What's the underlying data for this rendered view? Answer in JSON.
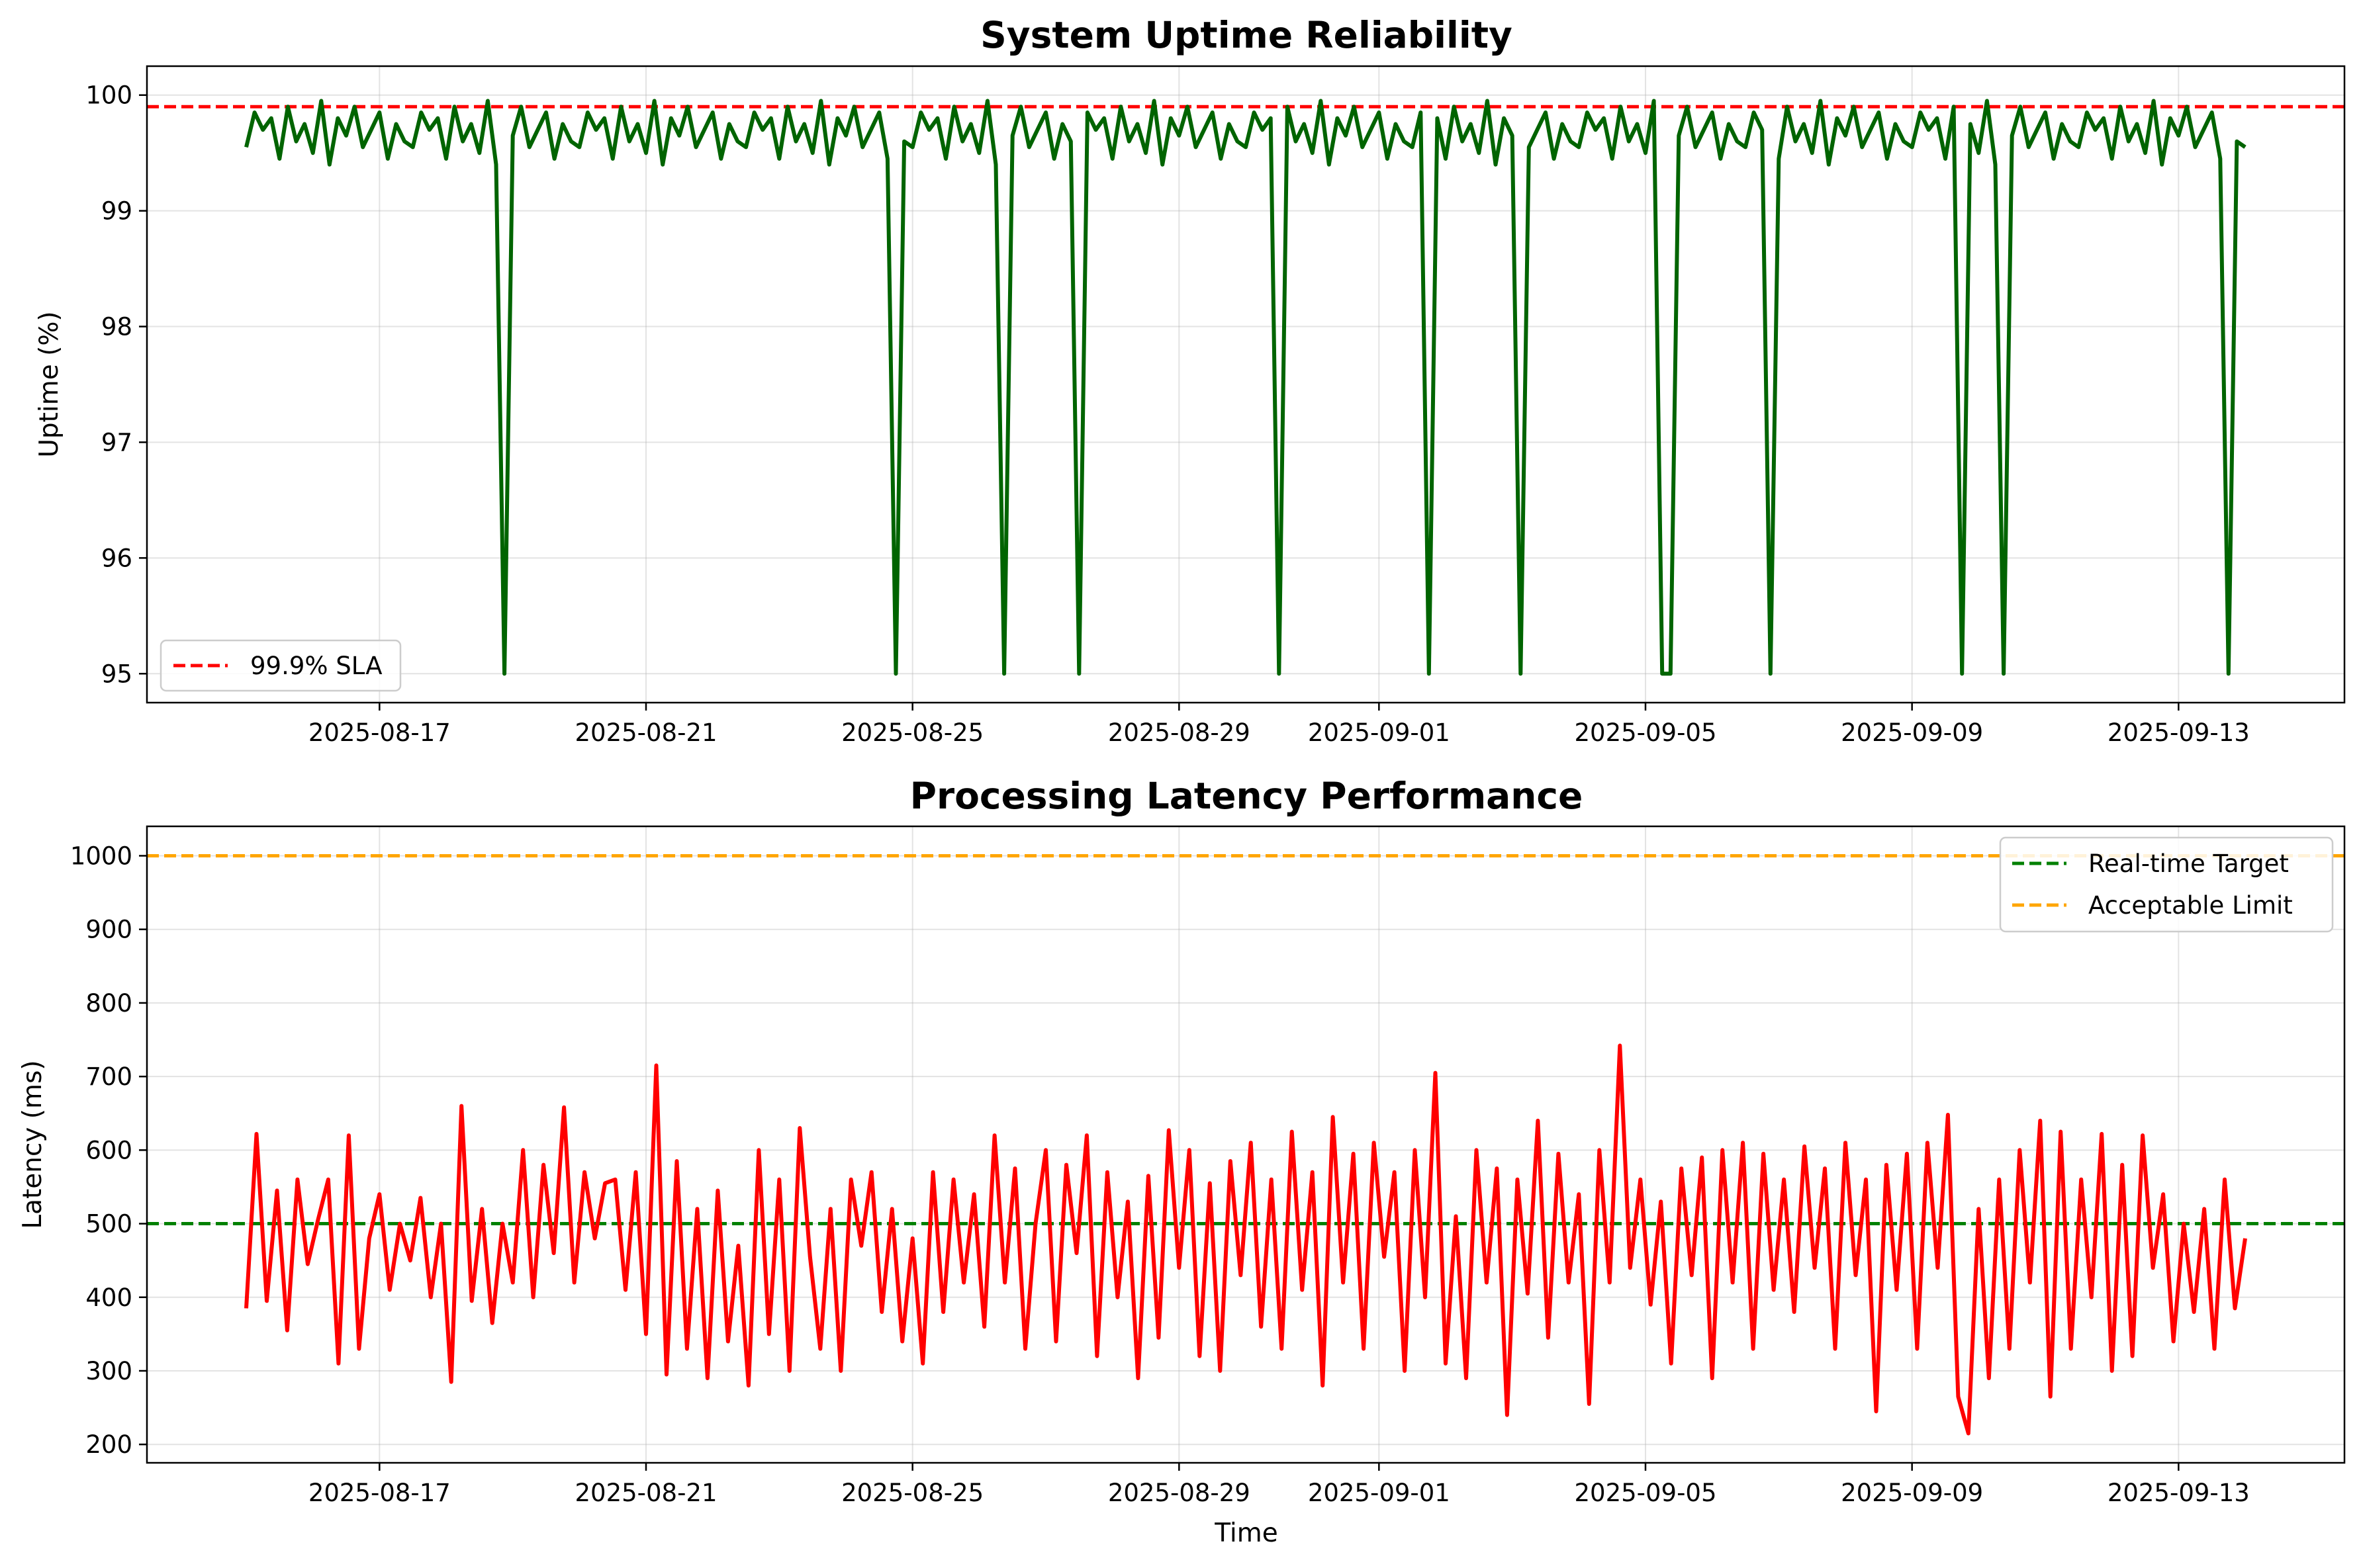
{
  "chart_data": [
    {
      "type": "line",
      "title": "System Uptime Reliability",
      "xlabel": "",
      "ylabel": "Uptime (%)",
      "x_range": [
        "2025-08-15",
        "2025-09-14"
      ],
      "x_ticks": [
        "2025-08-17",
        "2025-08-21",
        "2025-08-25",
        "2025-08-29",
        "2025-09-01",
        "2025-09-05",
        "2025-09-09",
        "2025-09-13"
      ],
      "ylim": [
        94.75,
        100.25
      ],
      "y_ticks": [
        95,
        96,
        97,
        98,
        99,
        100
      ],
      "grid": true,
      "legend_position": "lower-left",
      "series": [
        {
          "name": "",
          "color": "#006400",
          "baseline": [
            99.55,
            99.85,
            99.7,
            99.8,
            99.45,
            99.9,
            99.6,
            99.75,
            99.5,
            99.95,
            99.4,
            99.8,
            99.65,
            99.9,
            99.55,
            99.7,
            99.85,
            99.45,
            99.75,
            99.6
          ],
          "dip_dates": [
            "2025-08-18T21:00",
            "2025-08-24T17:00",
            "2025-08-26T10:00",
            "2025-08-27T11:00",
            "2025-08-30T12:00",
            "2025-09-01T18:00",
            "2025-09-03T02:00",
            "2025-09-05T06:00",
            "2025-09-05T09:00",
            "2025-09-06T21:00",
            "2025-09-09T17:00",
            "2025-09-10T10:00",
            "2025-09-13T19:00"
          ],
          "dip_value": 95.0
        }
      ],
      "reference_lines": [
        {
          "label": "99.9% SLA",
          "value": 99.9,
          "color": "#ff0000",
          "style": "dashed"
        }
      ]
    },
    {
      "type": "line",
      "title": "Processing Latency Performance",
      "xlabel": "Time",
      "ylabel": "Latency (ms)",
      "x_range": [
        "2025-08-15",
        "2025-09-14"
      ],
      "x_ticks": [
        "2025-08-17",
        "2025-08-21",
        "2025-08-25",
        "2025-08-29",
        "2025-09-01",
        "2025-09-05",
        "2025-09-09",
        "2025-09-13"
      ],
      "ylim": [
        175,
        1040
      ],
      "y_ticks": [
        200,
        300,
        400,
        500,
        600,
        700,
        800,
        900,
        1000
      ],
      "grid": true,
      "legend_position": "upper-right",
      "series": [
        {
          "name": "",
          "color": "#ff0000",
          "values": [
            385,
            622,
            395,
            545,
            355,
            560,
            445,
            505,
            560,
            310,
            620,
            330,
            480,
            540,
            410,
            500,
            450,
            535,
            400,
            500,
            285,
            660,
            395,
            520,
            365,
            500,
            420,
            600,
            400,
            580,
            460,
            658,
            420,
            570,
            480,
            555,
            560,
            410,
            570,
            350,
            715,
            295,
            585,
            330,
            520,
            290,
            545,
            340,
            470,
            280,
            600,
            350,
            560,
            300,
            630,
            455,
            330,
            520,
            300,
            560,
            470,
            570,
            380,
            520,
            340,
            480,
            310,
            570,
            380,
            560,
            420,
            540,
            360,
            620,
            420,
            575,
            330,
            500,
            600,
            340,
            580,
            460,
            620,
            320,
            570,
            400,
            530,
            290,
            565,
            345,
            627,
            440,
            600,
            320,
            555,
            300,
            585,
            430,
            610,
            360,
            560,
            330,
            625,
            410,
            570,
            280,
            645,
            420,
            595,
            330,
            610,
            455,
            570,
            300,
            600,
            400,
            705,
            310,
            510,
            290,
            600,
            420,
            575,
            240,
            560,
            405,
            640,
            345,
            595,
            420,
            540,
            255,
            600,
            420,
            742,
            440,
            560,
            390,
            530,
            310,
            575,
            430,
            590,
            290,
            600,
            420,
            610,
            330,
            595,
            410,
            560,
            380,
            605,
            440,
            575,
            330,
            610,
            430,
            560,
            245,
            580,
            410,
            595,
            330,
            610,
            440,
            648,
            265,
            215,
            520,
            290,
            560,
            330,
            600,
            420,
            640,
            265,
            625,
            330,
            560,
            400,
            622,
            300,
            580,
            320,
            620,
            440,
            540,
            340,
            500,
            380,
            520,
            330,
            560,
            385,
            480
          ]
        }
      ],
      "reference_lines": [
        {
          "label": "Real-time Target",
          "value": 500,
          "color": "#008000",
          "style": "dashed"
        },
        {
          "label": "Acceptable Limit",
          "value": 1000,
          "color": "#ffa500",
          "style": "dashed"
        }
      ]
    }
  ]
}
